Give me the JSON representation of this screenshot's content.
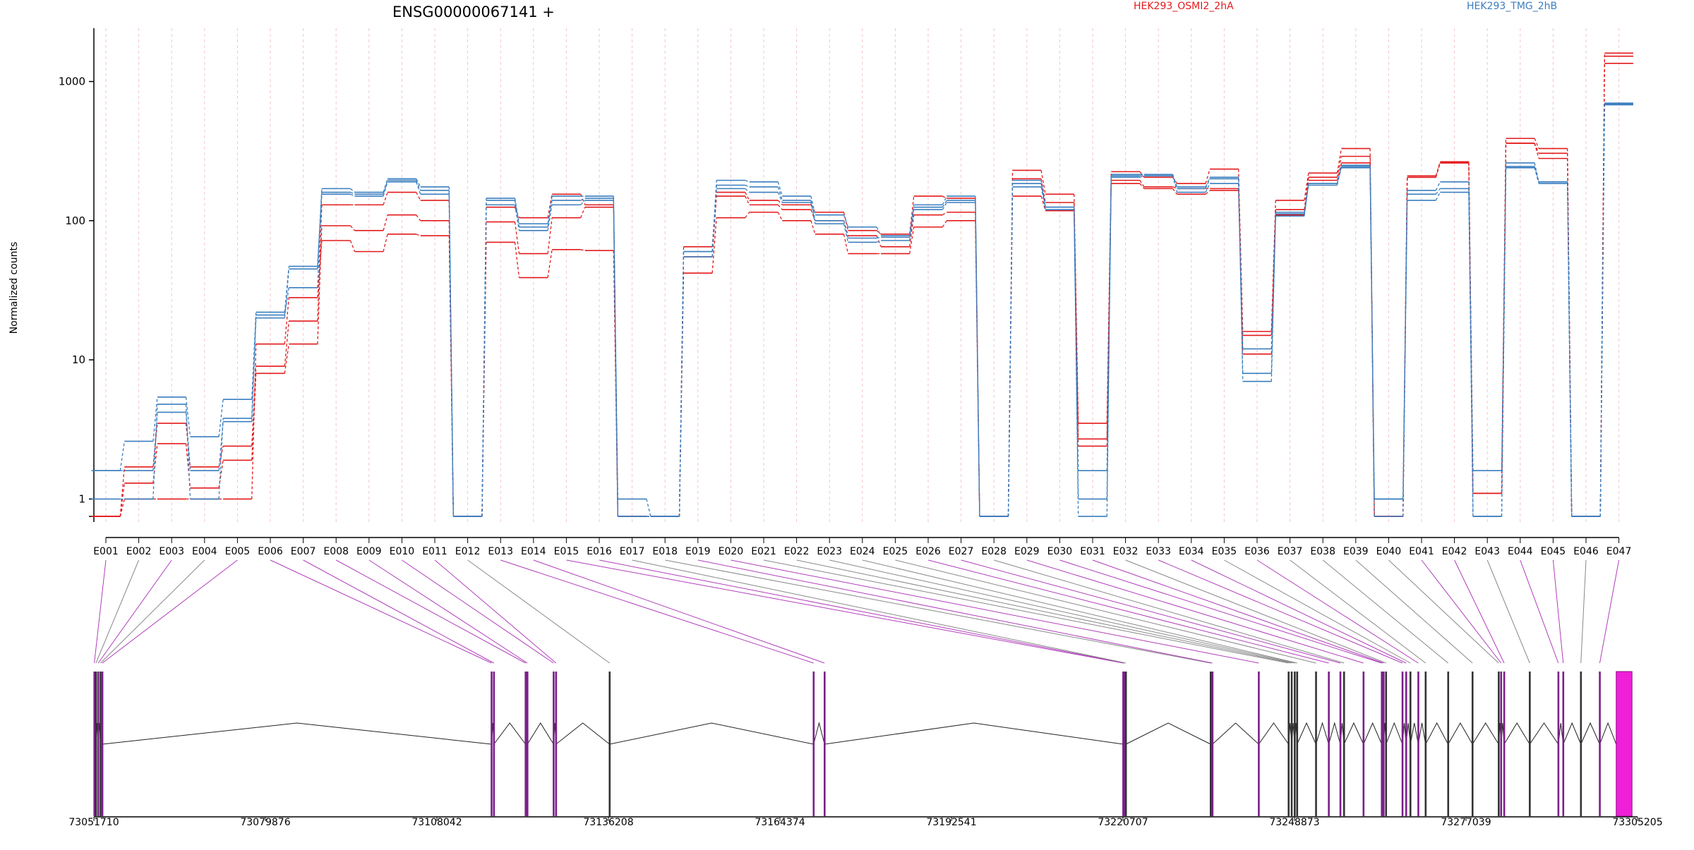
{
  "chart_data": {
    "type": "line",
    "title": "ENSG00000067141 +",
    "ylabel": "Normalized counts",
    "xlabel": "",
    "y_scale": "log",
    "ylim": [
      0.7,
      2200
    ],
    "grid": "vertical dashed lines at each exon bin",
    "legend": "top, inline text",
    "y_ticks": [
      1,
      10,
      100,
      1000
    ],
    "y_tick_labels": [
      "1",
      "10",
      "100",
      "1000"
    ],
    "colors": {
      "HEK293_OSMI2_2hA": "#e31a1c",
      "HEK293_TMG_2hB": "#3a7ebf",
      "exon_link": "#b03dba",
      "grid": "#f3c6c6",
      "highlight_exon": "#f01fd8"
    },
    "categories": [
      "E001",
      "E002",
      "E003",
      "E004",
      "E005",
      "E006",
      "E007",
      "E008",
      "E009",
      "E010",
      "E011",
      "E012",
      "E013",
      "E014",
      "E015",
      "E016",
      "E017",
      "E018",
      "E019",
      "E020",
      "E021",
      "E022",
      "E023",
      "E024",
      "E025",
      "E026",
      "E027",
      "E028",
      "E029",
      "E030",
      "E031",
      "E032",
      "E033",
      "E034",
      "E035",
      "E036",
      "E037",
      "E038",
      "E039",
      "E040",
      "E041",
      "E042",
      "E043",
      "E044",
      "E045",
      "E046",
      "E047"
    ],
    "series": [
      {
        "name": "HEK293_OSMI2_2hA",
        "group": "HEK293_OSMI2_2hA",
        "values": [
          0.75,
          1.7,
          3.5,
          1.7,
          2.4,
          9,
          19,
          130,
          130,
          160,
          140,
          0.75,
          125,
          105,
          155,
          130,
          0.75,
          0.75,
          65,
          160,
          140,
          130,
          115,
          85,
          80,
          150,
          145,
          0.75,
          230,
          155,
          3.5,
          225,
          205,
          185,
          235,
          16,
          140,
          220,
          330,
          0.75,
          210,
          265,
          1.1,
          390,
          330,
          0.75,
          1600
        ]
      },
      {
        "name": "HEK293_OSMI2_2hA",
        "group": "HEK293_OSMI2_2hA",
        "values": [
          0.75,
          1.3,
          2.5,
          1.2,
          1.9,
          8,
          13,
          92,
          85,
          110,
          100,
          0.75,
          98,
          58,
          105,
          125,
          0.75,
          0.75,
          55,
          150,
          130,
          120,
          100,
          78,
          65,
          110,
          115,
          0.75,
          200,
          135,
          2.4,
          195,
          175,
          170,
          170,
          15,
          120,
          205,
          290,
          0.75,
          205,
          260,
          1.1,
          360,
          305,
          0.75,
          1520
        ]
      },
      {
        "name": "HEK293_OSMI2_2hA",
        "group": "HEK293_OSMI2_2hA",
        "values": [
          0.75,
          1,
          1,
          1,
          1,
          13,
          28,
          72,
          60,
          80,
          78,
          0.75,
          70,
          39,
          62,
          61,
          0.75,
          0.75,
          42,
          105,
          115,
          100,
          80,
          58,
          58,
          90,
          100,
          0.75,
          150,
          118,
          2.7,
          185,
          170,
          155,
          165,
          11,
          110,
          195,
          260,
          0.75,
          205,
          260,
          1.1,
          360,
          280,
          0.75,
          1350
        ]
      },
      {
        "name": "HEK293_TMG_2hB",
        "group": "HEK293_TMG_2hB",
        "values": [
          1.6,
          2.6,
          5.4,
          2.8,
          5.2,
          22,
          47,
          170,
          160,
          200,
          175,
          0.75,
          145,
          95,
          150,
          150,
          1,
          0.75,
          60,
          195,
          190,
          150,
          110,
          90,
          78,
          130,
          150,
          0.75,
          195,
          125,
          1.6,
          215,
          215,
          175,
          205,
          8,
          115,
          185,
          250,
          1,
          165,
          190,
          1.6,
          260,
          190,
          0.75,
          700
        ]
      },
      {
        "name": "HEK293_TMG_2hB",
        "group": "HEK293_TMG_2hB",
        "values": [
          1.6,
          1.6,
          4.2,
          1.6,
          3.6,
          20,
          45,
          160,
          155,
          195,
          165,
          0.75,
          140,
          90,
          140,
          145,
          0.75,
          0.75,
          55,
          180,
          175,
          140,
          100,
          75,
          76,
          125,
          140,
          0.75,
          185,
          125,
          1,
          210,
          215,
          170,
          200,
          7,
          112,
          180,
          245,
          1,
          155,
          170,
          0.75,
          245,
          190,
          0.75,
          690
        ]
      },
      {
        "name": "HEK293_TMG_2hB",
        "group": "HEK293_TMG_2hB",
        "values": [
          1,
          1,
          4.8,
          1,
          3.8,
          21,
          33,
          155,
          150,
          190,
          155,
          0.75,
          130,
          85,
          130,
          140,
          0.75,
          0.75,
          60,
          170,
          160,
          135,
          95,
          70,
          72,
          120,
          135,
          0.75,
          175,
          120,
          0.75,
          205,
          210,
          160,
          185,
          12,
          108,
          185,
          240,
          0.75,
          140,
          160,
          0.75,
          240,
          185,
          0.75,
          680
        ]
      }
    ],
    "gene_model": {
      "coordinate_ticks": [
        "73051710",
        "73079876",
        "73108042",
        "73136208",
        "73164374",
        "73192541",
        "73220707",
        "73248873",
        "73277039",
        "73305205"
      ],
      "coordinate_start": 73051710,
      "coordinate_end": 73305205,
      "exon_positions": [
        73051780,
        73052050,
        73052420,
        73052800,
        73053100,
        73117010,
        73117400,
        73122600,
        73122900,
        73127200,
        73127600,
        73136400,
        73169900,
        73171700,
        73220740,
        73220960,
        73221180,
        73235100,
        73235400,
        73243000,
        73247900,
        73248400,
        73248900,
        73249300,
        73252400,
        73254500,
        73256400,
        73257000,
        73260200,
        73263200,
        73263500,
        73263900,
        73266600,
        73267200,
        73267900,
        73269200,
        73270400,
        73274100,
        73278100,
        73282400,
        73282800,
        73283300,
        73287500,
        73292200,
        73293000,
        73295900,
        73299000
      ],
      "highlight_exon": [
        73301700,
        73304300
      ],
      "link_colors": [
        "purple",
        "gray",
        "purple",
        "gray",
        "purple",
        "purple",
        "purple",
        "purple",
        "purple",
        "purple",
        "purple",
        "gray",
        "purple",
        "purple",
        "purple",
        "purple",
        "gray",
        "gray",
        "purple",
        "purple",
        "gray",
        "gray",
        "gray",
        "gray",
        "gray",
        "purple",
        "purple",
        "gray",
        "purple",
        "purple",
        "purple",
        "gray",
        "purple",
        "purple",
        "gray",
        "purple",
        "gray",
        "gray",
        "gray",
        "gray",
        "purple",
        "purple",
        "gray",
        "purple",
        "purple",
        "gray",
        "purple"
      ]
    }
  }
}
